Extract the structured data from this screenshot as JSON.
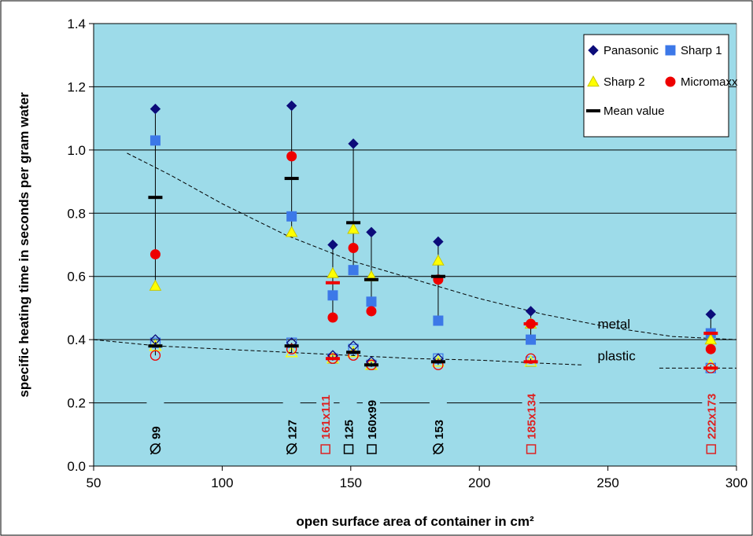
{
  "colors": {
    "plot_bg": "#9ddbe9",
    "panasonic": "#0c0c7a",
    "sharp1": "#3c78e8",
    "sharp2": "#ffff00",
    "micromaxx": "#ee0000",
    "mean": "#000000",
    "red_label": "#dd2222"
  },
  "chart_data": {
    "type": "scatter",
    "title": "",
    "xlabel": "open surface area of container in cm²",
    "ylabel": "specific heating time in seconds per gram water",
    "xlim": [
      50,
      300
    ],
    "ylim": [
      0,
      1.4
    ],
    "x_ticks": [
      "50",
      "100",
      "150",
      "200",
      "250",
      "300"
    ],
    "y_ticks": [
      "0.0",
      "0.2",
      "0.4",
      "0.6",
      "0.8",
      "1.0",
      "1.2",
      "1.4"
    ],
    "grid": "horizontal",
    "legend": {
      "placement": "top-right",
      "entries": [
        "Panasonic",
        "Sharp 1",
        "Sharp 2",
        "Micromaxx",
        "Mean value"
      ]
    },
    "series": [
      {
        "name": "Panasonic",
        "marker": "diamond",
        "x": [
          74,
          127,
          143,
          151,
          158,
          184,
          220,
          290
        ],
        "y": [
          1.13,
          1.14,
          0.7,
          1.02,
          0.74,
          0.71,
          0.49,
          0.48
        ]
      },
      {
        "name": "Sharp 1",
        "marker": "square",
        "x": [
          74,
          127,
          143,
          151,
          158,
          184,
          220,
          290
        ],
        "y": [
          1.03,
          0.79,
          0.54,
          0.62,
          0.52,
          0.46,
          0.4,
          0.42
        ]
      },
      {
        "name": "Sharp 2",
        "marker": "triangle",
        "x": [
          74,
          127,
          143,
          151,
          158,
          184,
          220,
          290
        ],
        "y": [
          0.57,
          0.74,
          0.61,
          0.75,
          0.6,
          0.65,
          0.45,
          0.4
        ]
      },
      {
        "name": "Micromaxx",
        "marker": "circle",
        "x": [
          74,
          127,
          143,
          151,
          158,
          184,
          220,
          290
        ],
        "y": [
          0.67,
          0.98,
          0.47,
          0.69,
          0.49,
          0.59,
          0.45,
          0.37
        ]
      },
      {
        "name": "Mean value",
        "marker": "dash",
        "x": [
          74,
          127,
          143,
          151,
          158,
          184,
          220,
          290
        ],
        "y": [
          0.85,
          0.91,
          0.58,
          0.77,
          0.59,
          0.6,
          0.45,
          0.42
        ]
      }
    ],
    "plastic_points": {
      "panasonic": {
        "x": [
          74,
          127,
          143,
          151,
          158,
          184
        ],
        "y": [
          0.4,
          0.39,
          0.35,
          0.38,
          0.33,
          0.34
        ]
      },
      "sharp1": {
        "x": [
          74,
          127,
          143,
          151,
          158,
          184,
          220,
          290
        ],
        "y": [
          0.39,
          0.39,
          0.34,
          0.37,
          0.32,
          0.34,
          0.33,
          0.31
        ]
      },
      "sharp2": {
        "x": [
          74,
          127,
          143,
          151,
          158,
          184,
          220,
          290
        ],
        "y": [
          0.38,
          0.36,
          0.34,
          0.36,
          0.32,
          0.33,
          0.33,
          0.32
        ]
      },
      "micromaxx": {
        "x": [
          74,
          127,
          143,
          151,
          158,
          184,
          220,
          290
        ],
        "y": [
          0.35,
          0.37,
          0.34,
          0.35,
          0.32,
          0.32,
          0.34,
          0.31
        ]
      },
      "mean": {
        "x": [
          74,
          127,
          143,
          151,
          158,
          184,
          220,
          290
        ],
        "y": [
          0.38,
          0.38,
          0.34,
          0.36,
          0.32,
          0.33,
          0.33,
          0.31
        ]
      }
    },
    "trend_lines": [
      {
        "label": "metal",
        "x": [
          63,
          80,
          100,
          125,
          150,
          175,
          200,
          225,
          250,
          275,
          300
        ],
        "y": [
          0.99,
          0.92,
          0.83,
          0.73,
          0.65,
          0.59,
          0.53,
          0.48,
          0.44,
          0.41,
          0.4
        ]
      },
      {
        "label": "plastic",
        "x": [
          50,
          75,
          100,
          125,
          150,
          175,
          200,
          225,
          240
        ],
        "y": [
          0.4,
          0.38,
          0.37,
          0.36,
          0.35,
          0.34,
          0.335,
          0.325,
          0.32
        ]
      },
      {
        "label": "",
        "x": [
          270,
          280,
          300
        ],
        "y": [
          0.31,
          0.31,
          0.31
        ]
      }
    ],
    "trend_label_pos": [
      {
        "x": 246,
        "y": 0.435
      },
      {
        "x": 246,
        "y": 0.335
      }
    ],
    "container_labels": [
      {
        "text": "99",
        "symbol": "⌀",
        "x": 74,
        "color": "black"
      },
      {
        "text": "127",
        "symbol": "⌀",
        "x": 127,
        "color": "black"
      },
      {
        "text": "161x111",
        "symbol": "□",
        "x": 140,
        "color": "red"
      },
      {
        "text": "125",
        "symbol": "□",
        "x": 149,
        "color": "black"
      },
      {
        "text": "160x99",
        "symbol": "□",
        "x": 158,
        "color": "black"
      },
      {
        "text": "153",
        "symbol": "⌀",
        "x": 184,
        "color": "black"
      },
      {
        "text": "185x134",
        "symbol": "□",
        "x": 220,
        "color": "red"
      },
      {
        "text": "222x173",
        "symbol": "□",
        "x": 290,
        "color": "red"
      }
    ]
  }
}
